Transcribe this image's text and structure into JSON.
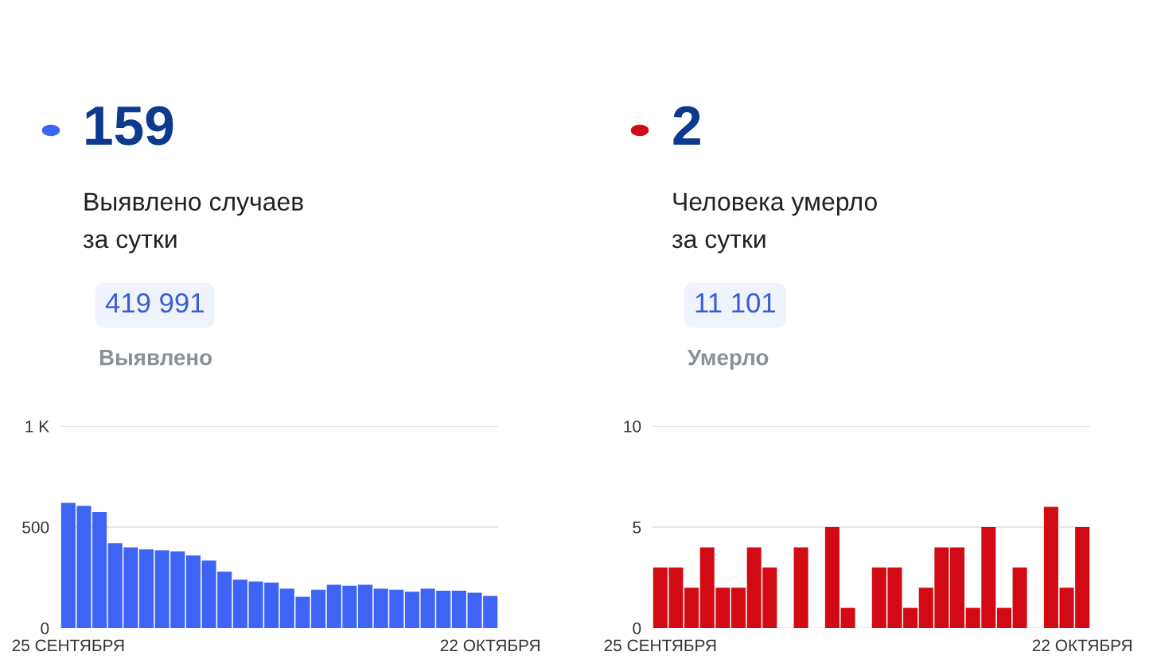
{
  "chart_data": [
    {
      "type": "bar",
      "title": "159",
      "subtitle": "Выявлено случаев\nза сутки",
      "annotations": [
        "419 991",
        "Выявлено"
      ],
      "categories": [
        "25 СЕНТЯБРЯ",
        null,
        null,
        null,
        null,
        null,
        null,
        null,
        null,
        null,
        null,
        null,
        null,
        null,
        null,
        null,
        null,
        null,
        null,
        null,
        null,
        null,
        null,
        null,
        null,
        null,
        null,
        "22 ОКТЯБРЯ"
      ],
      "values": [
        620,
        605,
        575,
        420,
        400,
        390,
        385,
        380,
        360,
        335,
        280,
        240,
        230,
        225,
        195,
        155,
        190,
        215,
        210,
        215,
        195,
        190,
        180,
        195,
        185,
        185,
        175,
        159
      ],
      "color": "#3d64f5",
      "ylim": [
        0,
        1000
      ],
      "yticks": [
        0,
        500,
        {
          "value": 1000,
          "label": "1 K"
        }
      ],
      "grid": "y"
    },
    {
      "type": "bar",
      "title": "2",
      "subtitle": "Человека умерло\nза сутки",
      "annotations": [
        "11 101",
        "Умерло"
      ],
      "categories": [
        "25 СЕНТЯБРЯ",
        null,
        null,
        null,
        null,
        null,
        null,
        null,
        null,
        null,
        null,
        null,
        null,
        null,
        null,
        null,
        null,
        null,
        null,
        null,
        null,
        null,
        null,
        null,
        null,
        null,
        null,
        "22 ОКТЯБРЯ"
      ],
      "values": [
        3,
        3,
        2,
        4,
        2,
        2,
        4,
        3,
        0,
        4,
        0,
        5,
        1,
        0,
        3,
        3,
        1,
        2,
        4,
        4,
        1,
        5,
        1,
        3,
        0,
        6,
        2,
        5
      ],
      "color": "#d20a14",
      "ylim": [
        0,
        10
      ],
      "yticks": [
        0,
        5,
        10
      ],
      "grid": "y"
    }
  ]
}
